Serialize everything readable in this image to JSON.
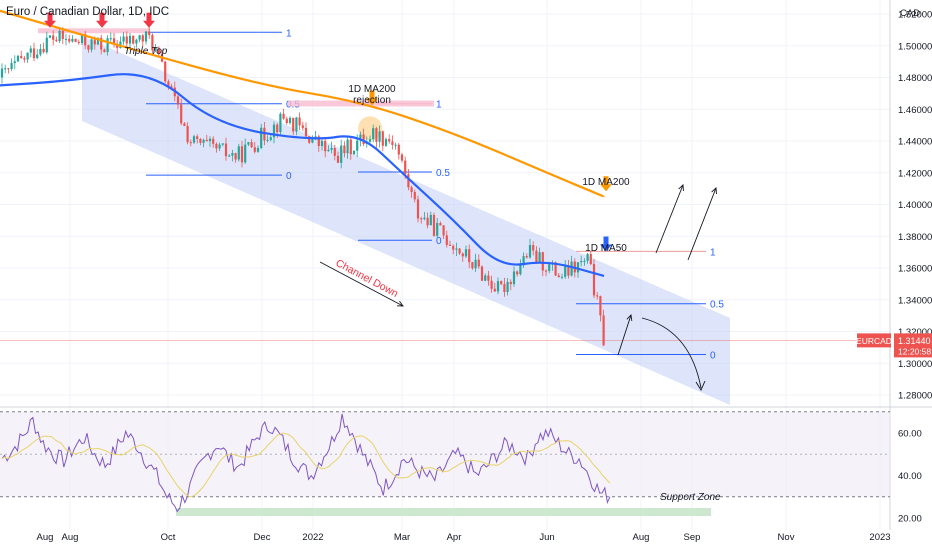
{
  "header": {
    "title": "Euro / Canadian Dollar, 1D, IDC"
  },
  "colors": {
    "bullish": "#26a69a",
    "bearish": "#ef5350",
    "ma50": "#2962ff",
    "ma200": "#ff9800",
    "channel": "#c3d0f5",
    "rsi": "#7e57c2",
    "rsi_ma": "#e8d36a",
    "support": "#c8e6c9",
    "fib": "#2962ff",
    "fib_top": "#f8bbd0",
    "price_tag": "#ef5350",
    "arrow_red": "#f23645",
    "arrow_orange": "#ff9800",
    "arrow_blue": "#2962ff"
  },
  "price_scale": {
    "unit": "CAD",
    "ticks": [
      "1.52000",
      "1.50000",
      "1.48000",
      "1.46000",
      "1.44000",
      "1.42000",
      "1.40000",
      "1.38000",
      "1.36000",
      "1.34000",
      "1.32000",
      "1.30000",
      "1.28000"
    ],
    "symbol_tag": "EURCAD",
    "last_price": "1.31440",
    "countdown": "12:20:58"
  },
  "rsi_scale": {
    "ticks": [
      "60.00",
      "40.00",
      "20.00"
    ]
  },
  "time_axis": {
    "labels": [
      "Aug",
      "Aug",
      "Oct",
      "Dec",
      "2022",
      "Mar",
      "Apr",
      "Jun",
      "Aug",
      "Sep",
      "Nov",
      "2023"
    ]
  },
  "annotations": {
    "triple_top": "Triple Top",
    "ma200_rejection_1": "1D MA200",
    "ma200_rejection_2": "rejection",
    "ma200_label": "1D MA200",
    "ma50_label": "1D MA50",
    "channel_down": "Channel Down",
    "support_zone": "Support Zone"
  },
  "fib_labels": {
    "set1": [
      "1",
      "0.5",
      "0"
    ],
    "set2": [
      "1",
      "0.5",
      "0"
    ],
    "set3": [
      "1",
      "0.5",
      "0"
    ]
  },
  "chart_data": {
    "type": "line",
    "symbol": "EURCAD",
    "timeframe": "1D",
    "y_range": [
      1.27,
      1.535
    ],
    "series": [
      {
        "name": "EURCAD",
        "x": [
          "2021-06",
          "2021-07-20",
          "2021-08-20",
          "2021-09-20",
          "2021-10-15",
          "2021-11-15",
          "2021-12-15",
          "2022-01-15",
          "2022-02-10",
          "2022-02-24",
          "2022-03-10",
          "2022-04-01",
          "2022-05-01",
          "2022-05-20",
          "2022-06-10",
          "2022-06-28",
          "2022-07-08"
        ],
        "values": [
          1.48,
          1.505,
          1.5,
          1.505,
          1.44,
          1.43,
          1.455,
          1.43,
          1.445,
          1.44,
          1.395,
          1.375,
          1.345,
          1.37,
          1.355,
          1.365,
          1.314
        ]
      },
      {
        "name": "1D MA50",
        "x": [
          "2021-06",
          "2021-08",
          "2021-09-20",
          "2021-11",
          "2022-01",
          "2022-02",
          "2022-03",
          "2022-04",
          "2022-05",
          "2022-06",
          "2022-07-08"
        ],
        "values": [
          1.475,
          1.478,
          1.485,
          1.45,
          1.44,
          1.445,
          1.42,
          1.39,
          1.36,
          1.365,
          1.355
        ]
      },
      {
        "name": "1D MA200",
        "x": [
          "2021-06",
          "2021-09",
          "2021-12",
          "2022-02",
          "2022-04",
          "2022-06",
          "2022-07-08"
        ],
        "values": [
          1.522,
          1.5,
          1.475,
          1.465,
          1.445,
          1.42,
          1.405
        ]
      }
    ],
    "rsi": {
      "name": "RSI",
      "y_range": [
        20,
        70
      ],
      "levels": [
        70,
        30
      ],
      "values": [
        48,
        52,
        58,
        66,
        55,
        50,
        47,
        53,
        58,
        50,
        45,
        52,
        60,
        55,
        47,
        40,
        30,
        25,
        32,
        42,
        50,
        55,
        48,
        44,
        52,
        60,
        64,
        58,
        50,
        44,
        40,
        48,
        56,
        68,
        60,
        50,
        42,
        34,
        40,
        48,
        44,
        40,
        38,
        44,
        50,
        46,
        40,
        44,
        50,
        55,
        52,
        48,
        58,
        60,
        55,
        50,
        48,
        40,
        32,
        30
      ]
    }
  }
}
